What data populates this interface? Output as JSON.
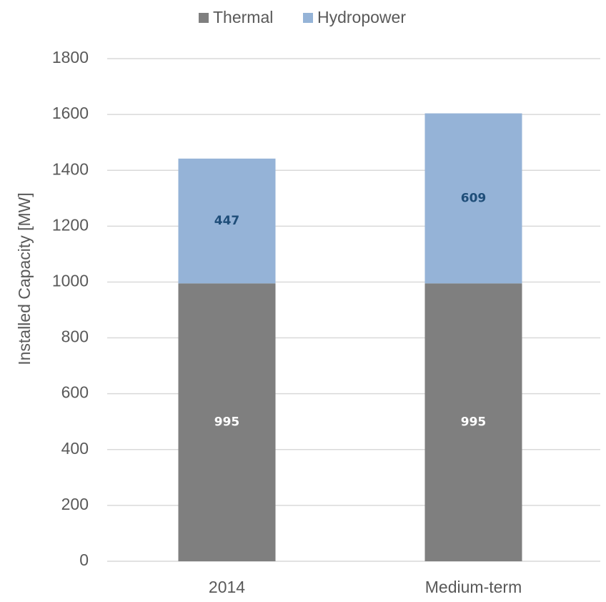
{
  "chart_data": {
    "type": "stacked_bar",
    "y_label": "Installed Capacity [MW]",
    "categories": [
      "2014",
      "Medium-term"
    ],
    "series": [
      {
        "name": "Thermal",
        "color": "#7f7f7f",
        "label_color": "#ffffff",
        "values": [
          995,
          995
        ]
      },
      {
        "name": "Hydropower",
        "color": "#95b3d7",
        "label_color": "#1f4e79",
        "values": [
          447,
          609
        ]
      }
    ],
    "ylim": [
      0,
      1800
    ],
    "yticks": [
      0,
      200,
      400,
      600,
      800,
      1000,
      1200,
      1400,
      1600,
      1800
    ],
    "grid": true,
    "legend": "top"
  }
}
